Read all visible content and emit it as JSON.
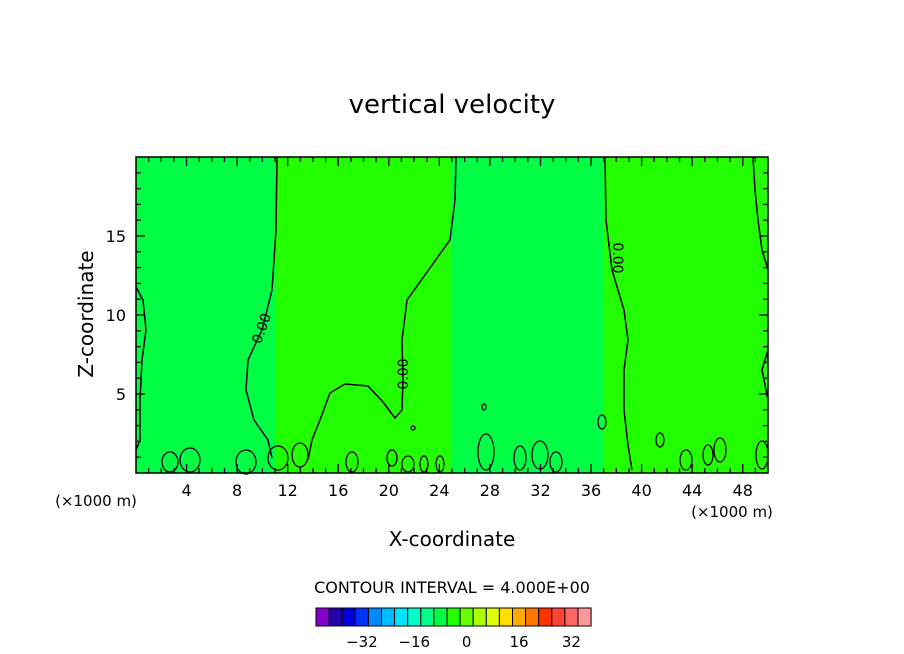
{
  "chart_data": {
    "type": "heatmap",
    "title": "vertical velocity",
    "xlabel": "X-coordinate",
    "ylabel": "Z-coordinate",
    "x_unit_left": "(×1000 m)",
    "x_unit_right": "(×1000 m)",
    "xlim": [
      0,
      50
    ],
    "ylim": [
      0,
      20
    ],
    "x_ticks": [
      4,
      8,
      12,
      16,
      20,
      24,
      28,
      32,
      36,
      40,
      44,
      48
    ],
    "y_ticks": [
      5,
      10,
      15
    ],
    "grid": false,
    "contour_interval_text": "CONTOUR INTERVAL = 4.000E+00",
    "contour_labels": [
      "0.00",
      "0.00",
      "0.00"
    ],
    "regions": [
      {
        "name": "slightly positive",
        "color": "#22ff00",
        "x_ranges": [
          [
            11,
            25
          ],
          [
            37,
            50
          ]
        ],
        "z_range": [
          0,
          20
        ]
      },
      {
        "name": "near zero",
        "color": "#00ff44",
        "x_ranges": [
          [
            0,
            11
          ],
          [
            25,
            37
          ]
        ],
        "z_range": [
          0,
          20
        ]
      }
    ],
    "colorbar": {
      "colors": [
        "#8800cc",
        "#2200aa",
        "#0000dd",
        "#0033ff",
        "#0088ff",
        "#00bbff",
        "#00e5ff",
        "#00ffcc",
        "#00ff88",
        "#00ff44",
        "#22ff00",
        "#66ff00",
        "#aaff00",
        "#ddff00",
        "#ffdd00",
        "#ffaa00",
        "#ff7700",
        "#ff3300",
        "#ff4433",
        "#ff6666",
        "#ff9999"
      ],
      "tick_labels": [
        "-32",
        "-16",
        "0",
        "16",
        "32"
      ]
    }
  }
}
